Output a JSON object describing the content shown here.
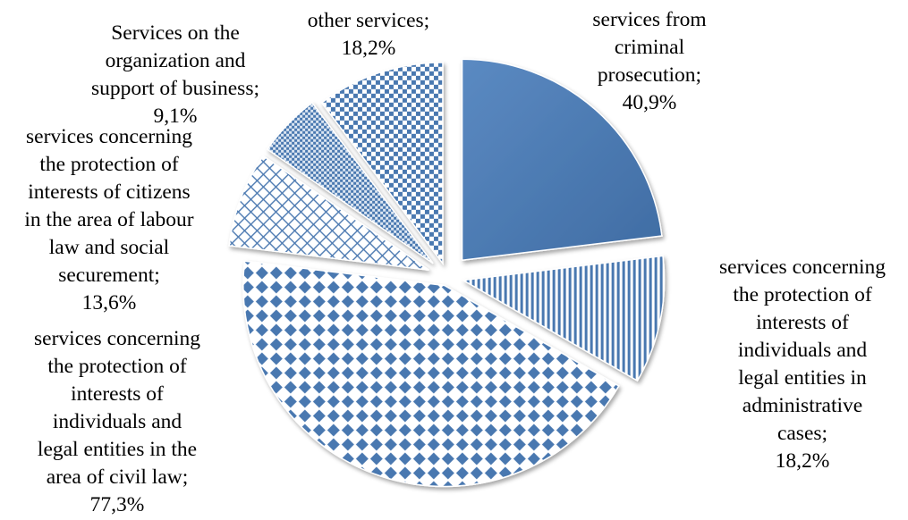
{
  "chart_data": {
    "type": "pie",
    "title": "",
    "slices": [
      {
        "label_lines": [
          "services from",
          "criminal",
          "prosecution;",
          "40,9%"
        ],
        "value": 40.9,
        "pattern": "solid"
      },
      {
        "label_lines": [
          "services concerning",
          "the protection of",
          "interests of",
          "individuals and",
          "legal entities in",
          "administrative",
          "cases;",
          "18,2%"
        ],
        "value": 18.2,
        "pattern": "vertical-lines"
      },
      {
        "label_lines": [
          "services concerning",
          "the protection of",
          "interests of",
          "individuals and",
          "legal entities in the",
          "area of civil law;",
          "77,3%"
        ],
        "value": 77.3,
        "pattern": "diamond-checker"
      },
      {
        "label_lines": [
          "services concerning",
          "the protection of",
          "interests of citizens",
          "in the area of labour",
          "law and social",
          "securement;",
          "13,6%"
        ],
        "value": 13.6,
        "pattern": "lattice"
      },
      {
        "label_lines": [
          "Services on the",
          "organization and",
          "support of business;",
          "9,1%"
        ],
        "value": 9.1,
        "pattern": "small-checker"
      },
      {
        "label_lines": [
          "other services;",
          "18,2%"
        ],
        "value": 18.2,
        "pattern": "checker"
      }
    ],
    "colors": {
      "primary": "#4A78B0",
      "primary_dark": "#2F5586",
      "light": "#DCE6F2",
      "white": "#FFFFFF"
    },
    "legend": "none",
    "data_labels": "outside"
  }
}
